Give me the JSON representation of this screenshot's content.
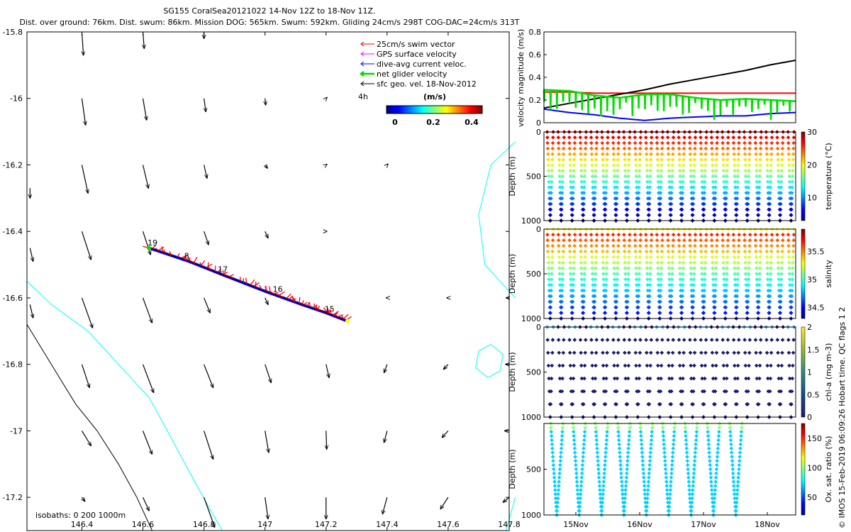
{
  "title_line1": "SG155 CoralSea20121022 14-Nov 12Z to 18-Nov 11Z.",
  "title_line2": "Dist. over ground: 76km. Dist. swum: 86km. Mission DOG: 565km. Swum: 592km. Gliding 24cm/s 298T COG-DAC=24cm/s 313T",
  "credit": "© IMOS 15-Feb-2019 06:09:26 Hobart time. QC flags 1  2",
  "colors": {
    "swim": "#ff0000",
    "gps": "#ff00ff",
    "dac": "#0000ff",
    "net": "#00dd00",
    "sfc": "#000000",
    "isobath_0": "#00ffff",
    "isobath_1000": "#000000"
  },
  "chart_data": [
    {
      "id": "map",
      "type": "scatter",
      "xlim": [
        146.22,
        147.8
      ],
      "ylim": [
        -17.3,
        -15.8
      ],
      "x_ticks": [
        "146.4",
        "146.6",
        "146.8",
        "147",
        "147.2",
        "147.4",
        "147.6",
        "147.8"
      ],
      "y_ticks": [
        "-15.8",
        "-16",
        "-16.2",
        "-16.4",
        "-16.6",
        "-16.8",
        "-17",
        "-17.2"
      ],
      "legend": [
        {
          "label": "25cm/s swim vector",
          "color": "#ff0000"
        },
        {
          "label": "GPS surface velocity",
          "color": "#ff00ff"
        },
        {
          "label": "dive-avg current veloc.",
          "color": "#0000ff"
        },
        {
          "label": "net glider velocity",
          "color": "#00dd00"
        },
        {
          "label": "sfc geo. vel. 18-Nov-2012",
          "color": "#000000"
        }
      ],
      "legend_small_label": "4h",
      "colorbar": {
        "label": "(m/s)",
        "ticks": [
          "0",
          "0.2",
          "0.4"
        ],
        "range": [
          0,
          0.5
        ]
      },
      "isobath_label": "isobaths: 0   200  1000m",
      "track": [
        [
          146.62,
          -16.45
        ],
        [
          146.75,
          -16.49
        ],
        [
          146.86,
          -16.53
        ],
        [
          147.0,
          -16.58
        ],
        [
          147.12,
          -16.62
        ],
        [
          147.2,
          -16.645
        ],
        [
          147.27,
          -16.67
        ]
      ],
      "day_labels": [
        {
          "text": "19",
          "x": 146.62,
          "y": -16.44
        },
        {
          "text": "8",
          "x": 146.74,
          "y": -16.48
        },
        {
          "text": "17",
          "x": 146.85,
          "y": -16.52
        },
        {
          "text": "16",
          "x": 147.03,
          "y": -16.58
        },
        {
          "text": "15",
          "x": 147.2,
          "y": -16.64
        }
      ],
      "arrows": [
        {
          "x": 146.4,
          "y": -15.8,
          "u": 0.005,
          "v": -0.07
        },
        {
          "x": 146.6,
          "y": -15.8,
          "u": 0.004,
          "v": -0.05
        },
        {
          "x": 146.8,
          "y": -15.8,
          "u": 0.0,
          "v": -0.02
        },
        {
          "x": 146.4,
          "y": -16.0,
          "u": 0.012,
          "v": -0.08
        },
        {
          "x": 146.6,
          "y": -16.0,
          "u": 0.012,
          "v": -0.065
        },
        {
          "x": 146.8,
          "y": -16.0,
          "u": 0.006,
          "v": -0.04
        },
        {
          "x": 147.0,
          "y": -16.0,
          "u": 0.002,
          "v": -0.02
        },
        {
          "x": 147.2,
          "y": -16.0,
          "u": 0.003,
          "v": 0.003
        },
        {
          "x": 146.4,
          "y": -16.2,
          "u": 0.02,
          "v": -0.085
        },
        {
          "x": 146.6,
          "y": -16.2,
          "u": 0.018,
          "v": -0.07
        },
        {
          "x": 146.8,
          "y": -16.2,
          "u": 0.01,
          "v": -0.04
        },
        {
          "x": 147.0,
          "y": -16.2,
          "u": 0.008,
          "v": -0.01
        },
        {
          "x": 147.2,
          "y": -16.2,
          "u": 0.003,
          "v": 0.002
        },
        {
          "x": 147.4,
          "y": -16.2,
          "u": 0.003,
          "v": 0.003
        },
        {
          "x": 146.23,
          "y": -16.27,
          "u": 0.0,
          "v": -0.03
        },
        {
          "x": 146.4,
          "y": -16.4,
          "u": 0.03,
          "v": -0.085
        },
        {
          "x": 146.6,
          "y": -16.4,
          "u": 0.025,
          "v": -0.07
        },
        {
          "x": 146.8,
          "y": -16.4,
          "u": 0.015,
          "v": -0.04
        },
        {
          "x": 147.0,
          "y": -16.4,
          "u": 0.01,
          "v": -0.02
        },
        {
          "x": 147.2,
          "y": -16.4,
          "u": 0.003,
          "v": 0.0
        },
        {
          "x": 146.23,
          "y": -16.45,
          "u": 0.01,
          "v": -0.04
        },
        {
          "x": 146.4,
          "y": -16.6,
          "u": 0.035,
          "v": -0.09
        },
        {
          "x": 146.6,
          "y": -16.6,
          "u": 0.03,
          "v": -0.075
        },
        {
          "x": 146.8,
          "y": -16.6,
          "u": 0.02,
          "v": -0.045
        },
        {
          "x": 147.0,
          "y": -16.6,
          "u": 0.01,
          "v": -0.02
        },
        {
          "x": 147.4,
          "y": -16.6,
          "u": -0.003,
          "v": 0.0
        },
        {
          "x": 147.6,
          "y": -16.6,
          "u": -0.004,
          "v": 0.0
        },
        {
          "x": 147.8,
          "y": -16.6,
          "u": -0.01,
          "v": 0.0
        },
        {
          "x": 146.23,
          "y": -16.62,
          "u": 0.01,
          "v": -0.04
        },
        {
          "x": 146.4,
          "y": -16.8,
          "u": 0.025,
          "v": -0.07
        },
        {
          "x": 146.6,
          "y": -16.8,
          "u": 0.035,
          "v": -0.085
        },
        {
          "x": 146.8,
          "y": -16.8,
          "u": 0.03,
          "v": -0.07
        },
        {
          "x": 147.0,
          "y": -16.8,
          "u": 0.02,
          "v": -0.055
        },
        {
          "x": 147.2,
          "y": -16.8,
          "u": 0.01,
          "v": -0.04
        },
        {
          "x": 147.4,
          "y": -16.8,
          "u": -0.01,
          "v": -0.025
        },
        {
          "x": 147.6,
          "y": -16.8,
          "u": -0.015,
          "v": -0.015
        },
        {
          "x": 147.8,
          "y": -16.8,
          "u": -0.012,
          "v": 0.0
        },
        {
          "x": 146.4,
          "y": -17.0,
          "u": 0.03,
          "v": -0.045
        },
        {
          "x": 146.6,
          "y": -17.0,
          "u": 0.03,
          "v": -0.07
        },
        {
          "x": 146.8,
          "y": -17.0,
          "u": 0.03,
          "v": -0.085
        },
        {
          "x": 147.0,
          "y": -17.0,
          "u": 0.012,
          "v": -0.065
        },
        {
          "x": 147.2,
          "y": -17.0,
          "u": 0.002,
          "v": -0.055
        },
        {
          "x": 147.4,
          "y": -17.0,
          "u": -0.01,
          "v": -0.035
        },
        {
          "x": 147.6,
          "y": -17.0,
          "u": -0.02,
          "v": -0.02
        },
        {
          "x": 147.8,
          "y": -17.0,
          "u": -0.015,
          "v": 0.0
        },
        {
          "x": 146.4,
          "y": -17.2,
          "u": 0.01,
          "v": -0.012
        },
        {
          "x": 146.6,
          "y": -17.2,
          "u": 0.02,
          "v": -0.04
        },
        {
          "x": 146.8,
          "y": -17.2,
          "u": 0.035,
          "v": -0.09
        },
        {
          "x": 147.0,
          "y": -17.2,
          "u": 0.01,
          "v": -0.065
        },
        {
          "x": 147.2,
          "y": -17.2,
          "u": 0.0,
          "v": -0.065
        },
        {
          "x": 147.4,
          "y": -17.2,
          "u": -0.015,
          "v": -0.05
        },
        {
          "x": 147.6,
          "y": -17.2,
          "u": -0.025,
          "v": -0.035
        },
        {
          "x": 147.8,
          "y": -17.2,
          "u": -0.02,
          "v": -0.015
        }
      ],
      "isobath_cyan_line": [
        [
          146.22,
          -16.55
        ],
        [
          146.3,
          -16.62
        ],
        [
          146.42,
          -16.7
        ],
        [
          146.52,
          -16.8
        ],
        [
          146.62,
          -16.9
        ],
        [
          146.68,
          -17.0
        ],
        [
          146.75,
          -17.12
        ],
        [
          146.81,
          -17.22
        ],
        [
          146.86,
          -17.3
        ]
      ],
      "isobath_black_line": [
        [
          146.22,
          -16.68
        ],
        [
          146.3,
          -16.8
        ],
        [
          146.38,
          -16.92
        ],
        [
          146.45,
          -17.0
        ],
        [
          146.52,
          -17.1
        ],
        [
          146.58,
          -17.2
        ],
        [
          146.63,
          -17.3
        ]
      ],
      "isobath_cyan_east": [
        [
          147.82,
          -16.13
        ],
        [
          147.74,
          -16.2
        ],
        [
          147.7,
          -16.35
        ],
        [
          147.72,
          -16.5
        ],
        [
          147.82,
          -16.6
        ]
      ],
      "isobath_cyan_loop": [
        [
          147.74,
          -16.74
        ],
        [
          147.78,
          -16.77
        ],
        [
          147.77,
          -16.82
        ],
        [
          147.73,
          -16.84
        ],
        [
          147.69,
          -16.81
        ],
        [
          147.7,
          -16.76
        ],
        [
          147.74,
          -16.74
        ]
      ],
      "isobath_cyan_se": [
        [
          147.82,
          -17.2
        ],
        [
          147.79,
          -17.3
        ]
      ]
    },
    {
      "id": "velocity",
      "type": "line",
      "ylabel": "velocity magnitude (m/s)",
      "ylim": [
        0,
        0.8
      ],
      "y_ticks": [
        "0",
        "0.2",
        "0.4",
        "0.6",
        "0.8"
      ],
      "x": [
        0,
        0.1,
        0.2,
        0.3,
        0.4,
        0.5,
        0.6,
        0.7,
        0.8,
        0.9,
        1.0
      ],
      "series": [
        {
          "color": "#ff0000",
          "values": [
            0.27,
            0.27,
            0.26,
            0.26,
            0.26,
            0.26,
            0.26,
            0.26,
            0.26,
            0.26,
            0.26
          ]
        },
        {
          "color": "#000000",
          "values": [
            0.13,
            0.17,
            0.21,
            0.25,
            0.29,
            0.34,
            0.38,
            0.42,
            0.46,
            0.51,
            0.55
          ]
        },
        {
          "color": "#0000ff",
          "values": [
            0.12,
            0.09,
            0.07,
            0.04,
            0.02,
            0.04,
            0.05,
            0.06,
            0.06,
            0.08,
            0.09
          ]
        },
        {
          "color": "#00dd00",
          "values": [
            0.29,
            0.28,
            0.24,
            0.22,
            0.25,
            0.25,
            0.22,
            0.2,
            0.21,
            0.2,
            0.19
          ]
        }
      ]
    },
    {
      "id": "temperature",
      "type": "scatter",
      "ylabel": "Depth (m)",
      "cbar_label": "temperature (°C)",
      "cbar_ticks": [
        "10",
        "20",
        "30"
      ],
      "cbar_range": [
        3,
        30
      ],
      "depth_ticks": [
        "0",
        "500",
        "1000"
      ],
      "surface_value": 29,
      "deep_value": 5
    },
    {
      "id": "salinity",
      "type": "scatter",
      "ylabel": "Depth (m)",
      "cbar_label": "salinity",
      "cbar_ticks": [
        "34.5",
        "35",
        "35.5"
      ],
      "cbar_range": [
        34.3,
        35.9
      ],
      "depth_ticks": [
        "0",
        "500",
        "1000"
      ]
    },
    {
      "id": "chla",
      "type": "scatter",
      "ylabel": "Depth (m)",
      "cbar_label": "chl-a (mg m-3)",
      "cbar_ticks": [
        "0",
        "0.5",
        "1",
        "1.5",
        "2"
      ],
      "cbar_range": [
        0,
        2
      ],
      "depth_ticks": [
        "0",
        "500",
        "1000"
      ]
    },
    {
      "id": "oxygen",
      "type": "scatter",
      "ylabel": "Depth (m)",
      "cbar_label": "Ox. sat. ratio (%)",
      "cbar_ticks": [
        "50",
        "100",
        "150"
      ],
      "cbar_range": [
        20,
        175
      ],
      "depth_ticks": [
        "500",
        "1000"
      ],
      "x_ticks": [
        "15Nov",
        "16Nov",
        "17Nov",
        "18Nov"
      ]
    }
  ]
}
